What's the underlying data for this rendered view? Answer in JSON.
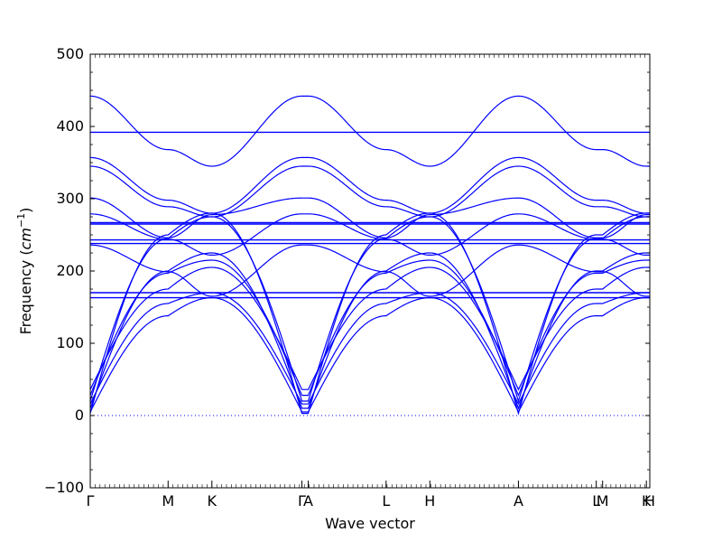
{
  "chart_data": {
    "type": "line",
    "title": "",
    "xlabel": "Wave vector",
    "ylabel_prefix": "Frequency (",
    "ylabel_unit": "cm",
    "ylabel_exp": "−1",
    "ylabel_suffix": ")",
    "ylim": [
      -100,
      500
    ],
    "yticks": [
      -100,
      0,
      100,
      200,
      300,
      400,
      500
    ],
    "xlim": [
      0,
      11.5
    ],
    "grid": false,
    "line_color": "#0000ff",
    "zero_line_color": "#0000ff",
    "kpath": [
      {
        "label": "Γ",
        "x": 0
      },
      {
        "label": "M",
        "x": 1.6
      },
      {
        "label": "K",
        "x": 2.5
      },
      {
        "label": "Γ",
        "x": 4.35
      },
      {
        "label": "A",
        "x": 4.48
      },
      {
        "label": "L",
        "x": 6.08
      },
      {
        "label": "H",
        "x": 6.98
      },
      {
        "label": "A",
        "x": 8.8
      },
      {
        "label": "L",
        "x": 10.4
      },
      {
        "label": "M",
        "x": 10.53
      },
      {
        "label": "K",
        "x": 11.43
      },
      {
        "label": "H",
        "x": 11.5
      }
    ],
    "flat_bands": [
      392,
      267,
      265,
      243,
      238,
      170,
      163
    ],
    "series": [
      {
        "profile": "cos",
        "values": [
          442,
          368,
          345,
          442,
          442,
          368,
          345,
          442,
          368,
          368,
          345,
          345
        ]
      },
      {
        "profile": "cos",
        "values": [
          357,
          298,
          280,
          357,
          357,
          298,
          280,
          357,
          298,
          298,
          280,
          280
        ]
      },
      {
        "profile": "cos",
        "values": [
          345,
          289,
          275,
          345,
          345,
          289,
          275,
          345,
          289,
          289,
          275,
          275
        ]
      },
      {
        "profile": "cos",
        "values": [
          301,
          246,
          278,
          301,
          301,
          246,
          278,
          301,
          246,
          246,
          278,
          278
        ]
      },
      {
        "profile": "cos",
        "values": [
          279,
          244,
          222,
          279,
          279,
          244,
          222,
          279,
          244,
          244,
          222,
          222
        ]
      },
      {
        "profile": "cos",
        "values": [
          236,
          199,
          165,
          236,
          236,
          199,
          165,
          236,
          199,
          199,
          165,
          165
        ]
      },
      {
        "profile": "dip",
        "values": [
          3,
          250,
          280,
          3,
          3,
          250,
          280,
          3,
          250,
          250,
          280,
          280
        ]
      },
      {
        "profile": "dip",
        "values": [
          20,
          245,
          275,
          20,
          20,
          245,
          275,
          20,
          245,
          245,
          275,
          275
        ]
      },
      {
        "profile": "dip",
        "values": [
          10,
          200,
          225,
          10,
          10,
          200,
          225,
          10,
          200,
          200,
          225,
          225
        ]
      },
      {
        "profile": "dip",
        "values": [
          28,
          197,
          215,
          28,
          28,
          197,
          215,
          28,
          197,
          197,
          215,
          215
        ]
      },
      {
        "profile": "dip",
        "values": [
          36,
          175,
          205,
          36,
          36,
          175,
          205,
          36,
          175,
          175,
          205,
          205
        ]
      },
      {
        "profile": "dip",
        "values": [
          16,
          155,
          170,
          16,
          16,
          155,
          170,
          16,
          155,
          155,
          170,
          170
        ]
      },
      {
        "profile": "dip",
        "values": [
          5,
          138,
          163,
          5,
          5,
          138,
          163,
          5,
          138,
          138,
          163,
          163
        ]
      }
    ]
  }
}
